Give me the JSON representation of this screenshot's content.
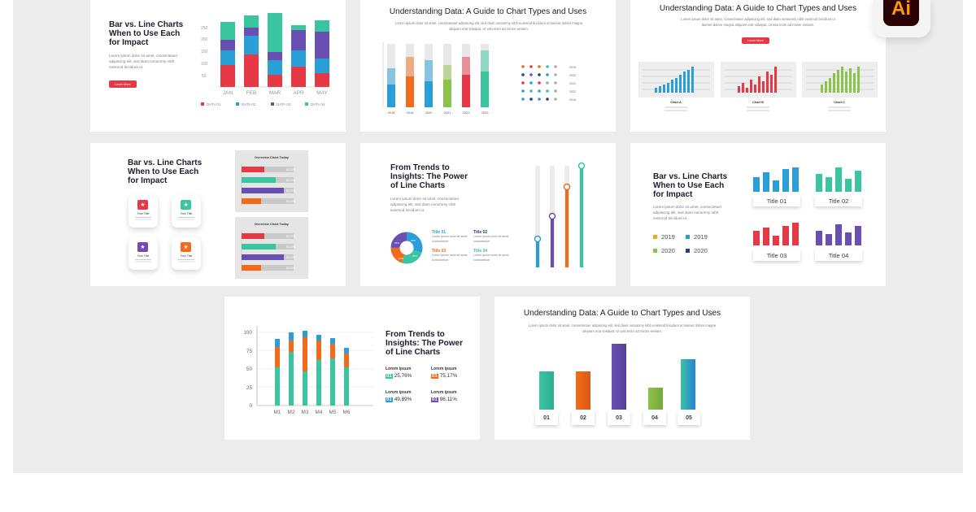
{
  "colors": {
    "red": "#e63946",
    "blue": "#2a9fd6",
    "purple": "#6a4fb3",
    "teal": "#3ac5a1",
    "orange": "#f26b1d",
    "green": "#8bc34a",
    "navy": "#24417e",
    "frame": "#ececec"
  },
  "app_badge": {
    "label": "Ai",
    "icon": "adobe-illustrator-icon"
  },
  "slide1": {
    "title": "Bar vs. Line Charts When to Use Each for Impact",
    "body": "Lorem ipsum dolor sit amet, consectetuer adipiscing elit, sed diam nonummy nibh euismod tincidunt ut.",
    "button": "Learn More",
    "y_ticks": [
      "250",
      "200",
      "150",
      "100",
      "50"
    ],
    "months": [
      "JAN",
      "FEB",
      "MAR",
      "APR",
      "MAY"
    ],
    "legend": [
      "DATA 01",
      "DATA 02",
      "DATA 03",
      "DATA 04"
    ]
  },
  "slide2": {
    "title": "Understanding Data: A Guide to Chart Types and Uses",
    "body": "Lorem ipsum dolor sit amet, consectetuer adipiscing elit, sed diam nonummy nibh euismod tincidunt ut laoreet dolore magna aliquam erat volutpat. Ut wisi enim ad minim veniam.",
    "years": [
      "2018",
      "2019",
      "2020",
      "2021",
      "2022",
      "2023"
    ],
    "icon_years": [
      "2019",
      "2020",
      "2021",
      "2022",
      "2018"
    ]
  },
  "slide3": {
    "title": "Understanding Data: A Guide to Chart Types and Uses",
    "body": "Lorem ipsum dolor sit amet, consectetuer adipiscing elit, sed diam nonummy nibh euismod tincidunt ut laoreet dolore magna aliquam erat volutpat. Ut wisi enim ad minim veniam.",
    "button": "Learn More",
    "charts": [
      "Chart A",
      "Chart B",
      "Chart C"
    ]
  },
  "slide4": {
    "title": "Bar vs. Line Charts When to Use Each for Impact",
    "tiles": [
      "Your Title",
      "Your Title",
      "Your Title",
      "Your Title"
    ],
    "panels": [
      "Overview Chart Today",
      "Overview Chart Today"
    ],
    "pct": [
      "$123%",
      "$123%",
      "$123%",
      "$123%"
    ]
  },
  "slide5": {
    "title": "From Trends to Insights: The Power of Line Charts",
    "body": "Lorem ipsum dolor sit amet, consectetuer adipiscing elit, sed diam nonummy nibh euismod tincidunt ut.",
    "items": [
      "Title 01",
      "Title 02",
      "Title 03",
      "Title 04"
    ],
    "item_body": "Lorem ipsum dolor sit amet, consectetuer",
    "donut": [
      "30%",
      "25%",
      "20%",
      "25%"
    ]
  },
  "slide6": {
    "title": "Bar vs. Line Charts When to Use Each for Impact",
    "body": "Lorem ipsum dolor sit amet, consectetuer adipiscing elit, sed diam nonummy nibh euismod tincidunt ut.",
    "legend": [
      "2019",
      "2019",
      "2020",
      "2020"
    ],
    "titles": [
      "Title 01",
      "Title 02",
      "Title 03",
      "Title 04"
    ]
  },
  "slide7": {
    "title": "From Trends to Insights: The Power of Line Charts",
    "y_ticks": [
      "100",
      "75",
      "50",
      "25",
      "0"
    ],
    "months": [
      "M1",
      "M2",
      "M3",
      "M4",
      "M5",
      "M6"
    ],
    "label": "Lorem ipsum",
    "stats": [
      {
        "n": "01",
        "v": "25,76%"
      },
      {
        "n": "01",
        "v": "75,17%"
      },
      {
        "n": "01",
        "v": "49,89%"
      },
      {
        "n": "01",
        "v": "98,11%"
      }
    ]
  },
  "slide8": {
    "title": "Understanding Data: A Guide to Chart Types and Uses",
    "body": "Lorem ipsum dolor sit amet, consectetuer adipiscing elit, sed diam nonummy nibh euismod tincidunt ut laoreet dolore magna aliquam erat volutpat. Ut wisi enim ad minim veniam.",
    "labels": [
      "01",
      "02",
      "03",
      "04",
      "05"
    ]
  }
}
